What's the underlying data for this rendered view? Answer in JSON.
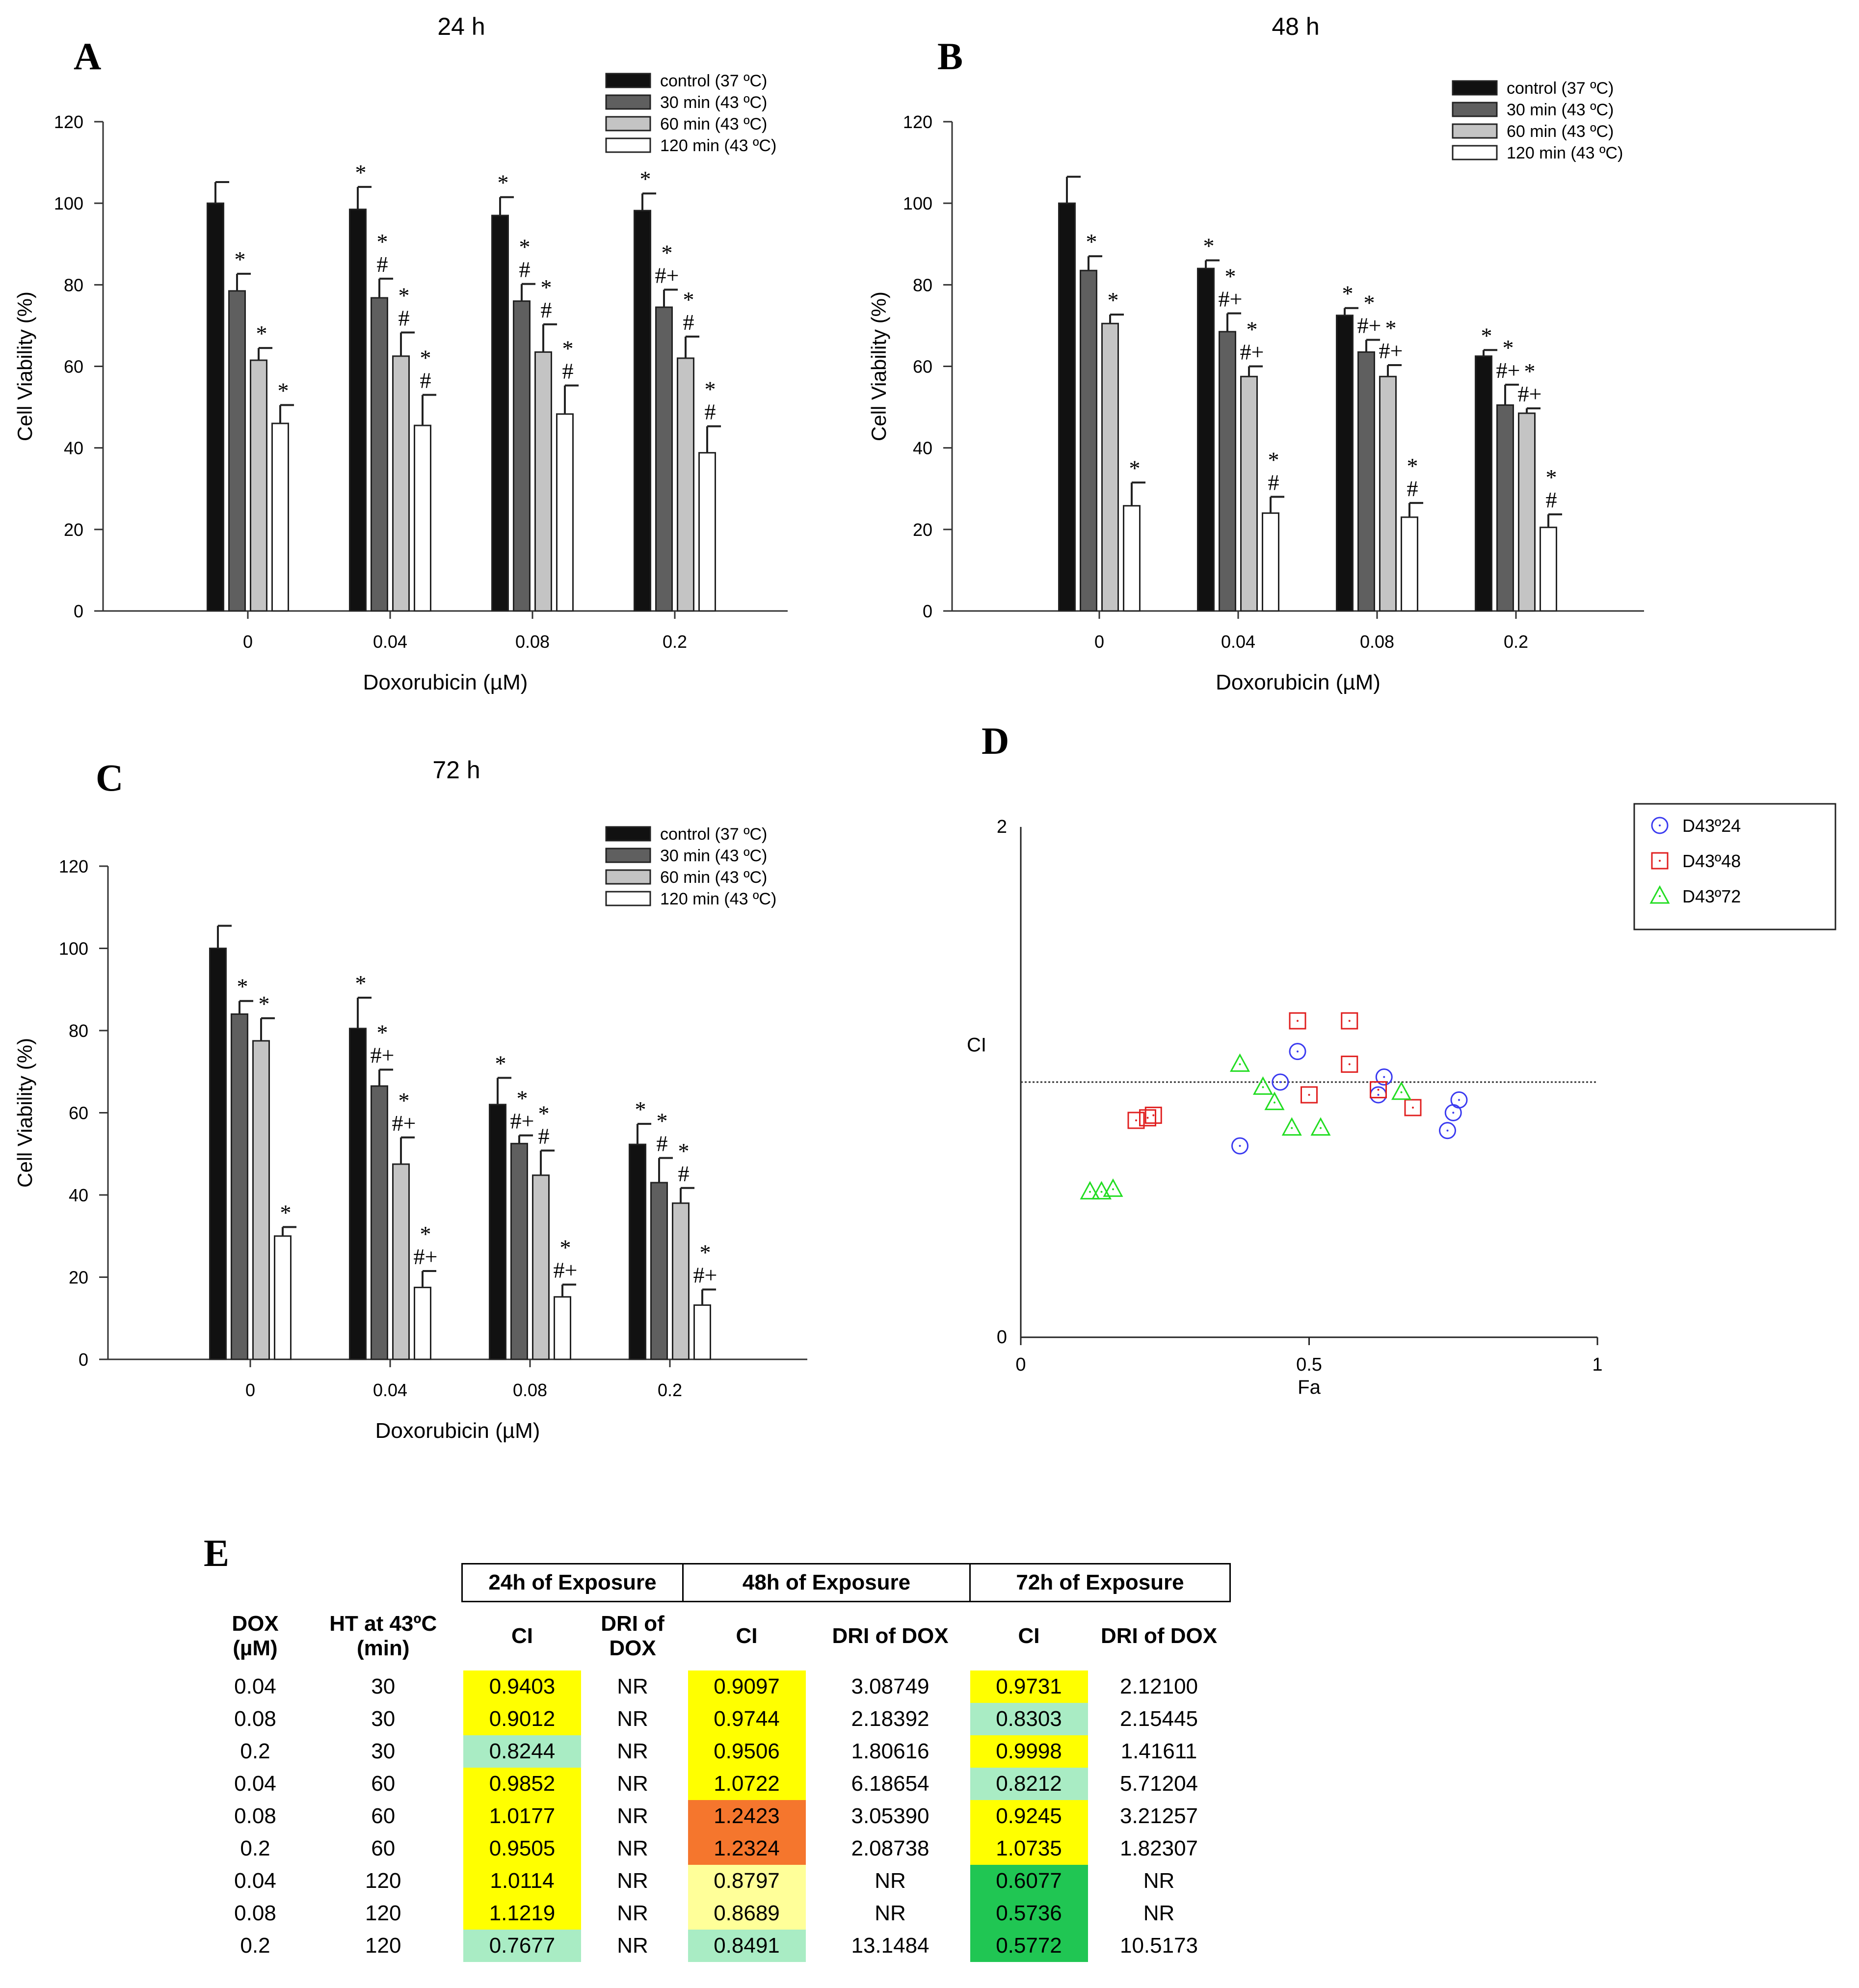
{
  "panels": {
    "A": {
      "label": "A",
      "title": "24 h",
      "chart_data": {
        "type": "bar",
        "categories": [
          "0",
          "0.04",
          "0.08",
          "0.2"
        ],
        "xlabel": "Doxorubicin (µM)",
        "ylabel": "Cell Viability (%)",
        "ylim": [
          0,
          120
        ],
        "yticks": [
          "0",
          "20",
          "40",
          "60",
          "80",
          "100",
          "120"
        ],
        "legend_position": "top-right",
        "series": [
          {
            "name": "control (37 ºC)",
            "color": "#111111",
            "values": [
              100,
              98.5,
              97,
              98.2
            ],
            "errors": [
              5.2,
              5.5,
              4.5,
              4.2
            ],
            "annotations": [
              "",
              "*",
              "*",
              "*"
            ]
          },
          {
            "name": "30 min (43 ºC)",
            "color": "#5f5f5f",
            "values": [
              78.5,
              76.8,
              76,
              74.5
            ],
            "errors": [
              4.2,
              4.7,
              4.2,
              4.3
            ],
            "annotations": [
              "*",
              "*\n#",
              "*\n#",
              "*\n#+"
            ]
          },
          {
            "name": "60 min (43 ºC)",
            "color": "#c4c4c4",
            "values": [
              61.5,
              62.5,
              63.5,
              62
            ],
            "errors": [
              3,
              5.8,
              6.8,
              5.3
            ],
            "annotations": [
              "*",
              "*\n#",
              "*\n#",
              "*\n#"
            ]
          },
          {
            "name": "120 min (43 ºC)",
            "color": "#ffffff",
            "values": [
              46,
              45.5,
              48.3,
              38.8
            ],
            "errors": [
              4.5,
              7.5,
              7,
              6.5
            ],
            "annotations": [
              "*",
              "*\n#",
              "*\n#",
              "*\n#"
            ]
          }
        ]
      }
    },
    "B": {
      "label": "B",
      "title": "48 h",
      "chart_data": {
        "type": "bar",
        "categories": [
          "0",
          "0.04",
          "0.08",
          "0.2"
        ],
        "xlabel": "Doxorubicin (µM)",
        "ylabel": "Cell Viability (%)",
        "ylim": [
          0,
          120
        ],
        "yticks": [
          "0",
          "20",
          "40",
          "60",
          "80",
          "100",
          "120"
        ],
        "legend_position": "top-right",
        "series": [
          {
            "name": "control (37 ºC)",
            "color": "#111111",
            "values": [
              100,
              84,
              72.5,
              62.5
            ],
            "errors": [
              6.5,
              2,
              1.8,
              1.5
            ],
            "annotations": [
              "",
              "*",
              "*",
              "*"
            ]
          },
          {
            "name": "30 min (43 ºC)",
            "color": "#5f5f5f",
            "values": [
              83.5,
              68.5,
              63.5,
              50.5
            ],
            "errors": [
              3.5,
              4.5,
              3,
              5
            ],
            "annotations": [
              "*",
              "*\n#+",
              "*\n#+",
              "*\n#+"
            ]
          },
          {
            "name": "60 min (43 ºC)",
            "color": "#c4c4c4",
            "values": [
              70.5,
              57.5,
              57.5,
              48.5
            ],
            "errors": [
              2.2,
              2.5,
              2.8,
              1.2
            ],
            "annotations": [
              "*",
              "*\n#+",
              "*\n#+",
              "*\n#+"
            ]
          },
          {
            "name": "120 min (43 ºC)",
            "color": "#ffffff",
            "values": [
              25.8,
              24,
              23,
              20.5
            ],
            "errors": [
              5.7,
              4,
              3.5,
              3.2
            ],
            "annotations": [
              "*",
              "*\n#",
              "*\n#",
              "*\n#"
            ]
          }
        ]
      }
    },
    "C": {
      "label": "C",
      "title": "72 h",
      "chart_data": {
        "type": "bar",
        "categories": [
          "0",
          "0.04",
          "0.08",
          "0.2"
        ],
        "xlabel": "Doxorubicin (µM)",
        "ylabel": "Cell Viability (%)",
        "ylim": [
          0,
          120
        ],
        "yticks": [
          "0",
          "20",
          "40",
          "60",
          "80",
          "100",
          "120"
        ],
        "legend_position": "top-right",
        "series": [
          {
            "name": "control (37 ºC)",
            "color": "#111111",
            "values": [
              100,
              80.5,
              62,
              52.3
            ],
            "errors": [
              5.5,
              7.5,
              6.5,
              5
            ],
            "annotations": [
              "",
              "*",
              "*",
              "*"
            ]
          },
          {
            "name": "30 min (43 ºC)",
            "color": "#5f5f5f",
            "values": [
              84,
              66.5,
              52.5,
              43
            ],
            "errors": [
              3.2,
              4,
              2,
              6
            ],
            "annotations": [
              "*",
              "*\n#+",
              "*\n#+",
              "*\n#"
            ]
          },
          {
            "name": "60 min (43 ºC)",
            "color": "#c4c4c4",
            "values": [
              77.5,
              47.5,
              44.8,
              38
            ],
            "errors": [
              5.5,
              6.5,
              6,
              3.7
            ],
            "annotations": [
              "*",
              "*\n#+",
              "*\n#",
              "*\n#"
            ]
          },
          {
            "name": "120 min (43 ºC)",
            "color": "#ffffff",
            "values": [
              30,
              17.5,
              15.2,
              13.2
            ],
            "errors": [
              2.2,
              4,
              3,
              3.8
            ],
            "annotations": [
              "*",
              "*\n#+",
              "*\n#+",
              "*\n#+"
            ]
          }
        ]
      }
    },
    "D": {
      "label": "D",
      "chart_data": {
        "type": "scatter",
        "xlabel": "Fa",
        "ylabel": "CI",
        "xlim": [
          0,
          1
        ],
        "ylim": [
          0,
          2
        ],
        "xticks": [
          "0",
          "0.5",
          "1"
        ],
        "yticks": [
          "0",
          "2"
        ],
        "reference_line_y": 1,
        "legend_position": "top-right",
        "series": [
          {
            "name": "D43º24",
            "marker": "circle",
            "color": "#3a3af0",
            "x": [
              0.38,
              0.45,
              0.48,
              0.62,
              0.63,
              0.74,
              0.75,
              0.76
            ],
            "y": [
              0.75,
              1.0,
              1.12,
              0.95,
              1.02,
              0.81,
              0.88,
              0.93
            ]
          },
          {
            "name": "D43º48",
            "marker": "square",
            "color": "#e02020",
            "x": [
              0.2,
              0.22,
              0.23,
              0.48,
              0.5,
              0.57,
              0.57,
              0.62,
              0.68
            ],
            "y": [
              0.85,
              0.86,
              0.87,
              1.24,
              0.95,
              1.07,
              1.24,
              0.97,
              0.9
            ]
          },
          {
            "name": "D43º72",
            "marker": "triangle",
            "color": "#22dd22",
            "x": [
              0.12,
              0.14,
              0.16,
              0.38,
              0.42,
              0.44,
              0.47,
              0.52,
              0.66
            ],
            "y": [
              0.57,
              0.57,
              0.58,
              1.07,
              0.98,
              0.92,
              0.82,
              0.82,
              0.96
            ]
          }
        ]
      }
    },
    "E": {
      "label": "E",
      "groups": [
        "24h of Exposure",
        "48h of Exposure",
        "72h of Exposure"
      ],
      "headers": [
        "DOX\n(µM)",
        "HT at 43ºC\n(min)",
        "CI",
        "DRI of\nDOX",
        "CI",
        "DRI of DOX",
        "CI",
        "DRI of DOX"
      ],
      "chart_data": {
        "type": "table",
        "rows": [
          {
            "dox": "0.04",
            "ht": "30",
            "ci24": "0.9403",
            "c24": "#ffff00",
            "dri24": "NR",
            "ci48": "0.9097",
            "c48": "#ffff00",
            "dri48": "3.08749",
            "ci72": "0.9731",
            "c72": "#ffff00",
            "dri72": "2.12100"
          },
          {
            "dox": "0.08",
            "ht": "30",
            "ci24": "0.9012",
            "c24": "#ffff00",
            "dri24": "NR",
            "ci48": "0.9744",
            "c48": "#ffff00",
            "dri48": "2.18392",
            "ci72": "0.8303",
            "c72": "#a9ecc4",
            "dri72": "2.15445"
          },
          {
            "dox": "0.2",
            "ht": "30",
            "ci24": "0.8244",
            "c24": "#a9ecc4",
            "dri24": "NR",
            "ci48": "0.9506",
            "c48": "#ffff00",
            "dri48": "1.80616",
            "ci72": "0.9998",
            "c72": "#ffff00",
            "dri72": "1.41611"
          },
          {
            "dox": "0.04",
            "ht": "60",
            "ci24": "0.9852",
            "c24": "#ffff00",
            "dri24": "NR",
            "ci48": "1.0722",
            "c48": "#ffff00",
            "dri48": "6.18654",
            "ci72": "0.8212",
            "c72": "#a9ecc4",
            "dri72": "5.71204"
          },
          {
            "dox": "0.08",
            "ht": "60",
            "ci24": "1.0177",
            "c24": "#ffff00",
            "dri24": "NR",
            "ci48": "1.2423",
            "c48": "#f5762d",
            "dri48": "3.05390",
            "ci72": "0.9245",
            "c72": "#ffff00",
            "dri72": "3.21257"
          },
          {
            "dox": "0.2",
            "ht": "60",
            "ci24": "0.9505",
            "c24": "#ffff00",
            "dri24": "NR",
            "ci48": "1.2324",
            "c48": "#f5762d",
            "dri48": "2.08738",
            "ci72": "1.0735",
            "c72": "#ffff00",
            "dri72": "1.82307"
          },
          {
            "dox": "0.04",
            "ht": "120",
            "ci24": "1.0114",
            "c24": "#ffff00",
            "dri24": "NR",
            "ci48": "0.8797",
            "c48": "#ffff99",
            "dri48": "NR",
            "ci72": "0.6077",
            "c72": "#20c653",
            "dri72": "NR"
          },
          {
            "dox": "0.08",
            "ht": "120",
            "ci24": "1.1219",
            "c24": "#ffff00",
            "dri24": "NR",
            "ci48": "0.8689",
            "c48": "#ffff99",
            "dri48": "NR",
            "ci72": "0.5736",
            "c72": "#20c653",
            "dri72": "NR"
          },
          {
            "dox": "0.2",
            "ht": "120",
            "ci24": "0.7677",
            "c24": "#a9ecc4",
            "dri24": "NR",
            "ci48": "0.8491",
            "c48": "#a9ecc4",
            "dri48": "13.1484",
            "ci72": "0.5772",
            "c72": "#20c653",
            "dri72": "10.5173"
          }
        ]
      }
    }
  }
}
